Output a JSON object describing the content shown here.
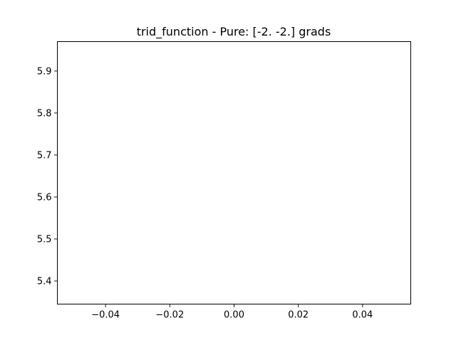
{
  "chart_data": {
    "type": "line",
    "title": "trid_function - Pure: [-2. -2.] grads",
    "xlabel": "",
    "ylabel": "",
    "xlim": [
      -0.055,
      0.055
    ],
    "ylim": [
      5.345,
      5.97
    ],
    "x_ticks": [
      -0.04,
      -0.02,
      0.0,
      0.02,
      0.04
    ],
    "x_tick_labels": [
      "−0.04",
      "−0.02",
      "0.00",
      "0.02",
      "0.04"
    ],
    "y_ticks": [
      5.4,
      5.5,
      5.6,
      5.7,
      5.8,
      5.9
    ],
    "y_tick_labels": [
      "5.4",
      "5.5",
      "5.6",
      "5.7",
      "5.8",
      "5.9"
    ],
    "series": [],
    "grid": false,
    "legend": "none",
    "colors": {
      "axes": "#000000",
      "background": "#ffffff"
    }
  }
}
